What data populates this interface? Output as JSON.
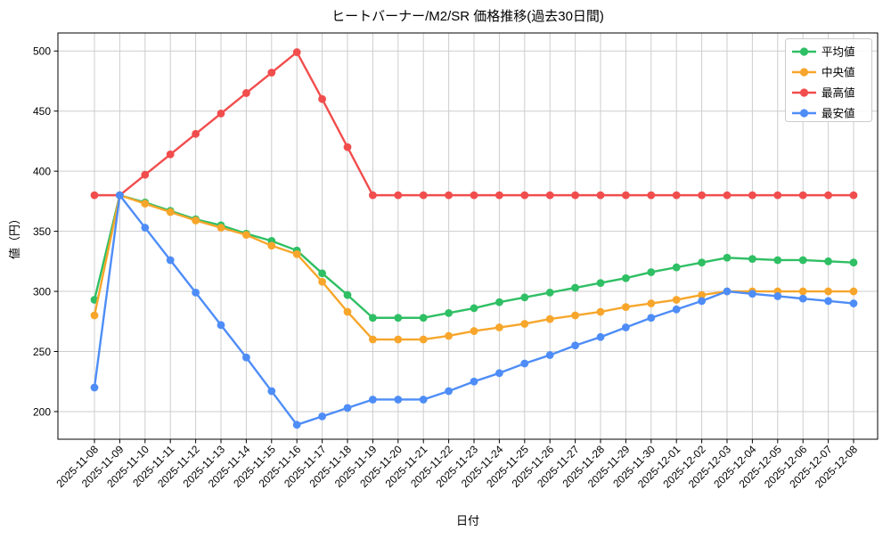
{
  "title": "ヒートバーナー/M2/SR 価格推移(過去30日間)",
  "chart_data": {
    "type": "line",
    "title": "ヒートバーナー/M2/SR 価格推移(過去30日間)",
    "xlabel": "日付",
    "ylabel": "値（円）",
    "grid": true,
    "legend_position": "upper right",
    "ylim": [
      177,
      515
    ],
    "yticks": [
      200,
      250,
      300,
      350,
      400,
      450,
      500
    ],
    "x": [
      "2025-11-08",
      "2025-11-09",
      "2025-11-10",
      "2025-11-11",
      "2025-11-12",
      "2025-11-13",
      "2025-11-14",
      "2025-11-15",
      "2025-11-16",
      "2025-11-17",
      "2025-11-18",
      "2025-11-19",
      "2025-11-20",
      "2025-11-21",
      "2025-11-22",
      "2025-11-23",
      "2025-11-24",
      "2025-11-25",
      "2025-11-26",
      "2025-11-27",
      "2025-11-28",
      "2025-11-29",
      "2025-11-30",
      "2025-12-01",
      "2025-12-02",
      "2025-12-03",
      "2025-12-04",
      "2025-12-05",
      "2025-12-06",
      "2025-12-07",
      "2025-12-08"
    ],
    "series": [
      {
        "key": "average",
        "name": "平均値",
        "color": "#2fbf64",
        "values": [
          293,
          380,
          374,
          367,
          360,
          355,
          348,
          342,
          334,
          315,
          297,
          278,
          278,
          278,
          282,
          286,
          291,
          295,
          299,
          303,
          307,
          311,
          316,
          320,
          324,
          328,
          327,
          326,
          326,
          325,
          324
        ]
      },
      {
        "key": "median",
        "name": "中央値",
        "color": "#f7a62b",
        "values": [
          280,
          380,
          373,
          366,
          359,
          353,
          347,
          338,
          331,
          308,
          283,
          260,
          260,
          260,
          263,
          267,
          270,
          273,
          277,
          280,
          283,
          287,
          290,
          293,
          297,
          300,
          300,
          300,
          300,
          300,
          300
        ]
      },
      {
        "key": "highest",
        "name": "最高値",
        "color": "#f14d4d",
        "values": [
          380,
          380,
          397,
          414,
          431,
          448,
          465,
          482,
          499,
          460,
          420,
          380,
          380,
          380,
          380,
          380,
          380,
          380,
          380,
          380,
          380,
          380,
          380,
          380,
          380,
          380,
          380,
          380,
          380,
          380,
          380
        ]
      },
      {
        "key": "lowest",
        "name": "最安値",
        "color": "#4e8df7",
        "values": [
          220,
          380,
          353,
          326,
          299,
          272,
          245,
          217,
          189,
          196,
          203,
          210,
          210,
          210,
          217,
          225,
          232,
          240,
          247,
          255,
          262,
          270,
          278,
          285,
          292,
          300,
          298,
          296,
          294,
          292,
          290
        ]
      }
    ]
  },
  "colors": {
    "grid": "#cdcdcd",
    "spine": "#000000",
    "legend_border": "#cccccc",
    "legend_bg": "#ffffff"
  }
}
